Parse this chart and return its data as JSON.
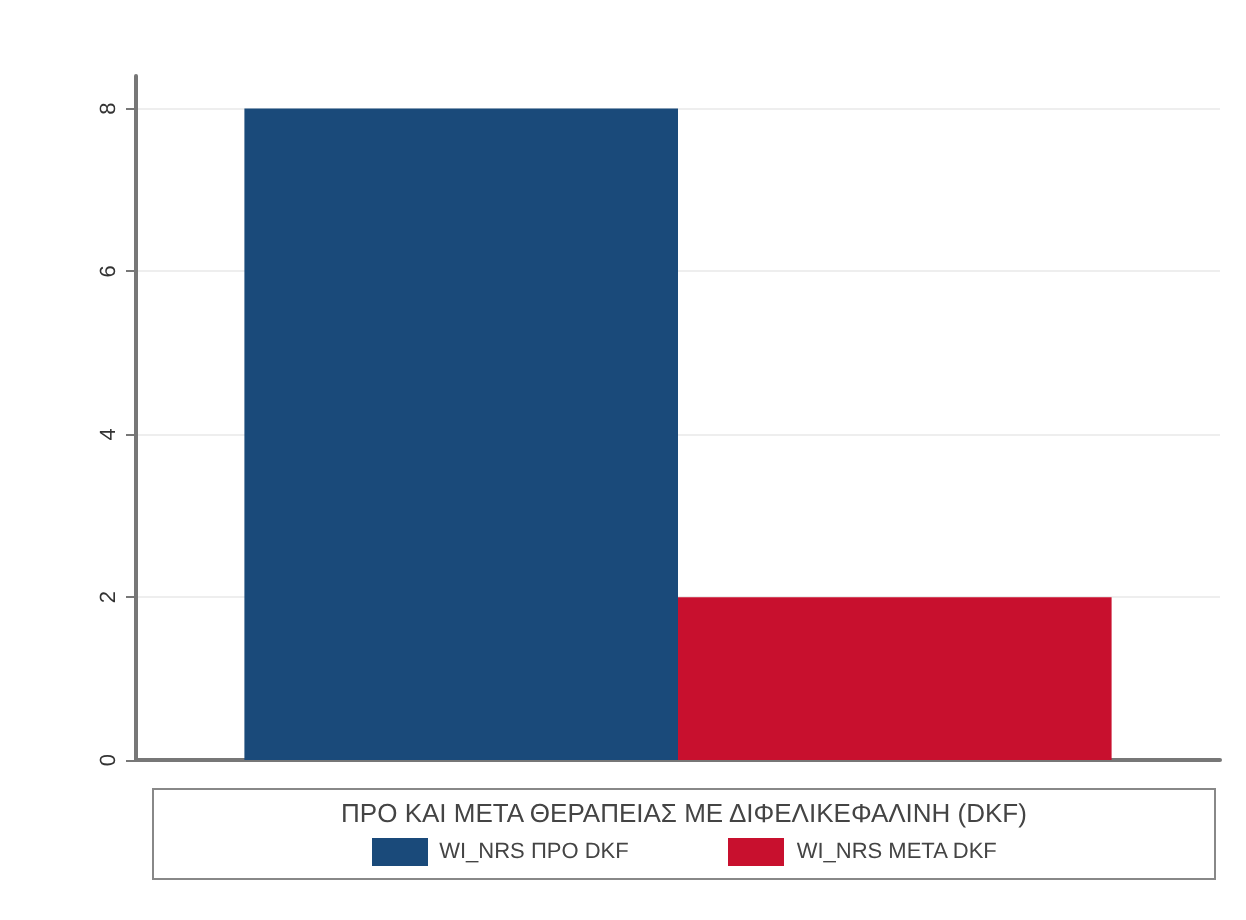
{
  "chart_data": {
    "type": "bar",
    "categories": [
      null
    ],
    "series": [
      {
        "name": "WI_NRS ΠΡΟ DKF",
        "color": "#1a4a7a",
        "values": [
          8
        ]
      },
      {
        "name": "WI_NRS ΜΕΤΑ DKF",
        "color": "#c8102e",
        "values": [
          2
        ]
      }
    ],
    "ylim": [
      0,
      8.4
    ],
    "yticks": [
      0,
      2,
      4,
      6,
      8
    ],
    "grid": "y",
    "legend": "bottom",
    "legend_title": "ΠΡΟ ΚΑΙ ΜΕΤΑ ΘΕΡΑΠΕΙΑΣ ΜΕ ΔΙΦΕΛΙΚΕΦΑΛΙΝΗ (DKF)"
  }
}
